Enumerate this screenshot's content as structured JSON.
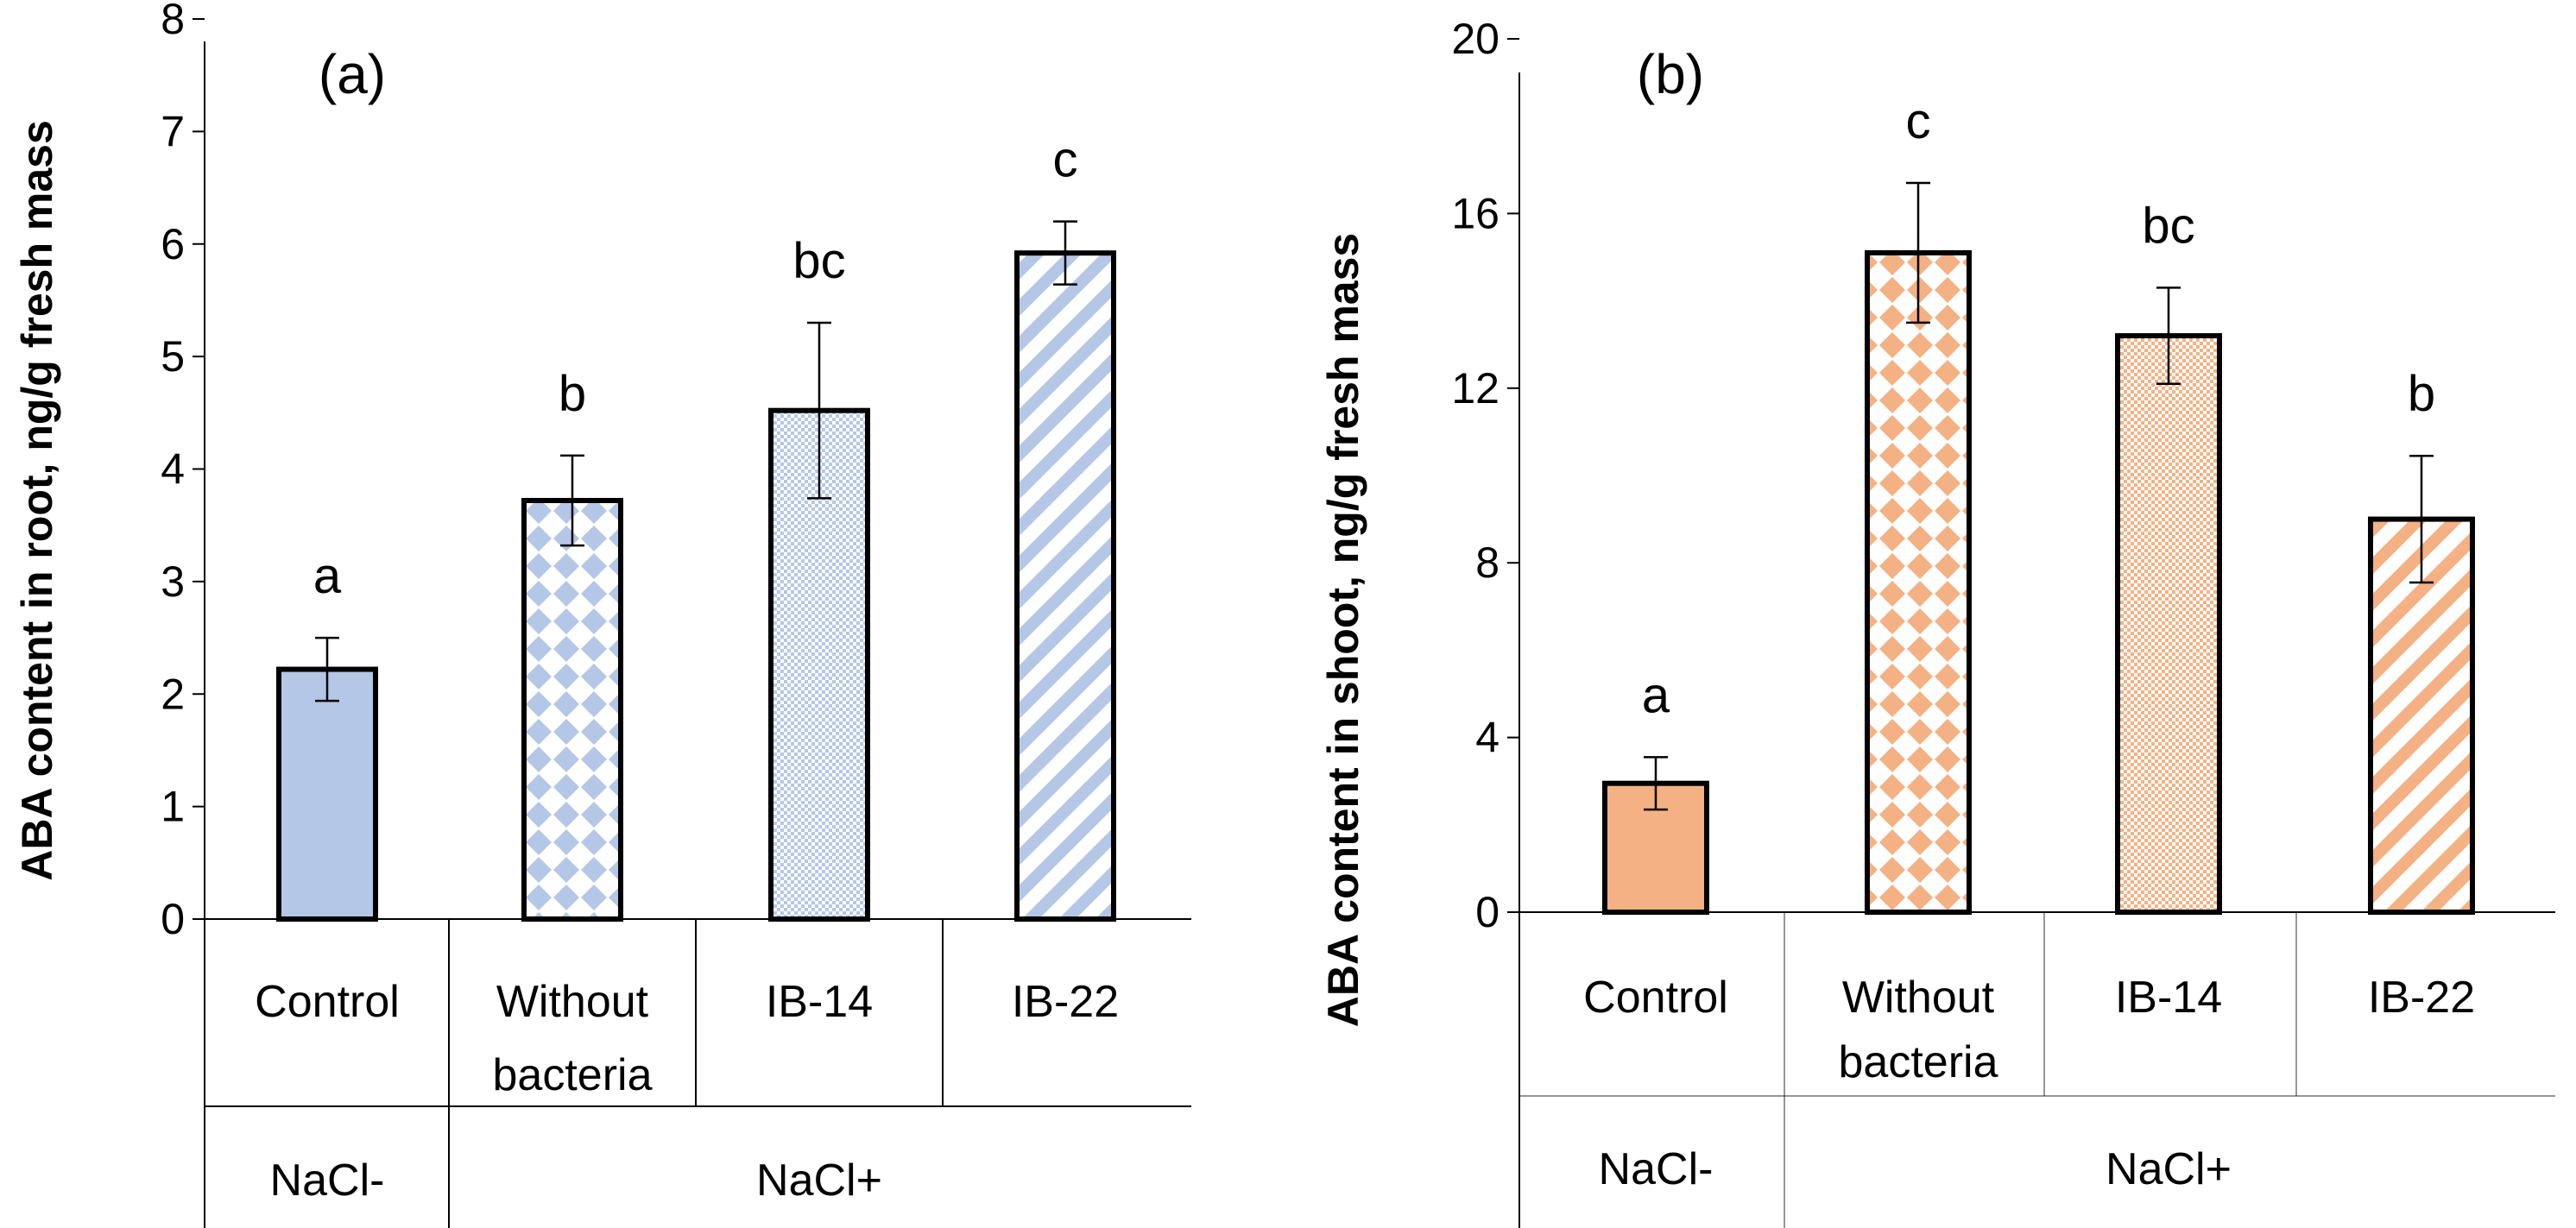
{
  "chart_data": [
    {
      "type": "bar",
      "panel_label": "(a)",
      "ylabel": "ABA content in root, ng/g fresh mass",
      "ylim": [
        0,
        8
      ],
      "yticks": [
        "0",
        "1",
        "2",
        "3",
        "4",
        "5",
        "6",
        "7",
        "8"
      ],
      "tick_values": [
        0,
        1,
        2,
        3,
        4,
        5,
        6,
        7,
        8
      ],
      "categories": [
        "Control",
        "Without bacteria",
        "IB-14",
        "IB-22"
      ],
      "category_lines": [
        [
          "Control"
        ],
        [
          "Without",
          "bacteria"
        ],
        [
          "IB-14"
        ],
        [
          "IB-22"
        ]
      ],
      "values": [
        2.22,
        3.72,
        4.52,
        5.92
      ],
      "errors": [
        0.28,
        0.4,
        0.78,
        0.28
      ],
      "significance": [
        "a",
        "b",
        "bc",
        "c"
      ],
      "groups": [
        {
          "label": "NaCl-",
          "span": 1
        },
        {
          "label": "NaCl+",
          "span": 3
        }
      ],
      "color": "#b4c7e7",
      "patterns": [
        "solid",
        "diamond",
        "fine",
        "diagonal"
      ]
    },
    {
      "type": "bar",
      "panel_label": "(b)",
      "ylabel": "ABA content in shoot, ng/g fresh mass",
      "ylim": [
        0,
        20
      ],
      "yticks": [
        "0",
        "4",
        "8",
        "12",
        "16",
        "20"
      ],
      "tick_values": [
        0,
        4,
        8,
        12,
        16,
        20
      ],
      "categories": [
        "Control",
        "Without bacteria",
        "IB-14",
        "IB-22"
      ],
      "category_lines": [
        [
          "Control"
        ],
        [
          "Without",
          "bacteria"
        ],
        [
          "IB-14"
        ],
        [
          "IB-22"
        ]
      ],
      "values": [
        2.95,
        15.1,
        13.2,
        9.0
      ],
      "errors": [
        0.6,
        1.6,
        1.1,
        1.45
      ],
      "significance": [
        "a",
        "c",
        "bc",
        "b"
      ],
      "groups": [
        {
          "label": "NaCl-",
          "span": 1
        },
        {
          "label": "NaCl+",
          "span": 3
        }
      ],
      "color": "#f4b183",
      "patterns": [
        "solid",
        "diamond",
        "fine",
        "diagonal"
      ]
    }
  ]
}
